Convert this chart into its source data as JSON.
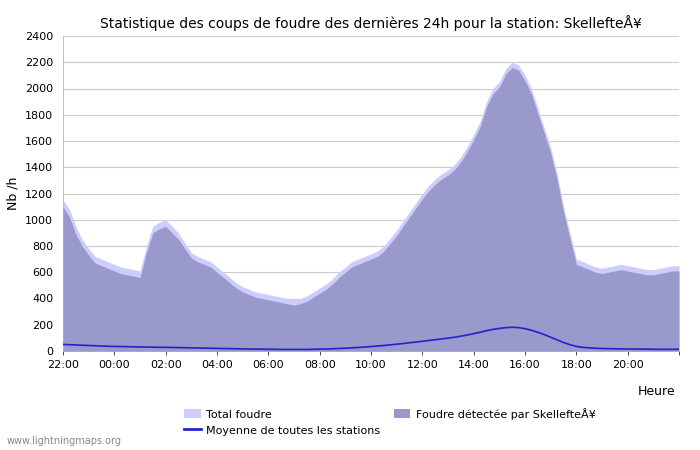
{
  "title": "Statistique des coups de foudre des dernières 24h pour la station: SkellefteÅ¥",
  "ylabel": "Nb /h",
  "xlabel_right": "Heure",
  "ylim": [
    0,
    2400
  ],
  "yticks": [
    0,
    200,
    400,
    600,
    800,
    1000,
    1200,
    1400,
    1600,
    1800,
    2000,
    2200,
    2400
  ],
  "xtick_positions": [
    0,
    2,
    4,
    6,
    8,
    10,
    12,
    14,
    16,
    18,
    20,
    22,
    24
  ],
  "xtick_labels": [
    "22:00",
    "00:00",
    "02:00",
    "04:00",
    "06:00",
    "08:00",
    "10:00",
    "12:00",
    "14:00",
    "16:00",
    "18:00",
    "20:00",
    ""
  ],
  "bg_color": "#ffffff",
  "grid_color": "#cccccc",
  "fill_total_color": "#ccccff",
  "fill_station_color": "#9999cc",
  "line_avg_color": "#2222cc",
  "watermark": "www.lightningmaps.org",
  "legend_total": "Total foudre",
  "legend_avg": "Moyenne de toutes les stations",
  "legend_station": "Foudre détectée par SkellefteÅ¥",
  "x": [
    0.0,
    0.25,
    0.5,
    0.75,
    1.0,
    1.25,
    1.5,
    1.75,
    2.0,
    2.25,
    2.5,
    2.75,
    3.0,
    3.25,
    3.5,
    3.75,
    4.0,
    4.25,
    4.5,
    4.75,
    5.0,
    5.25,
    5.5,
    5.75,
    6.0,
    6.25,
    6.5,
    6.75,
    7.0,
    7.25,
    7.5,
    7.75,
    8.0,
    8.25,
    8.5,
    8.75,
    9.0,
    9.25,
    9.5,
    9.75,
    10.0,
    10.25,
    10.5,
    10.75,
    11.0,
    11.25,
    11.5,
    11.75,
    12.0,
    12.25,
    12.5,
    12.75,
    13.0,
    13.25,
    13.5,
    13.75,
    14.0,
    14.25,
    14.5,
    14.75,
    15.0,
    15.25,
    15.5,
    15.75,
    16.0,
    16.25,
    16.5,
    16.75,
    17.0,
    17.25,
    17.5,
    17.75,
    18.0,
    18.25,
    18.5,
    18.75,
    19.0,
    19.25,
    19.5,
    19.75,
    20.0,
    20.25,
    20.5,
    20.75,
    21.0,
    21.25,
    21.5,
    21.75,
    22.0,
    22.25,
    22.5,
    22.75,
    23.0,
    23.25,
    23.5,
    23.75,
    24.0
  ],
  "total_foudre": [
    1150,
    1080,
    950,
    850,
    780,
    720,
    700,
    680,
    660,
    640,
    630,
    620,
    610,
    800,
    950,
    980,
    1000,
    950,
    900,
    820,
    750,
    720,
    700,
    680,
    640,
    600,
    560,
    520,
    490,
    470,
    450,
    440,
    430,
    420,
    410,
    400,
    390,
    400,
    420,
    450,
    480,
    510,
    550,
    600,
    640,
    680,
    700,
    720,
    740,
    760,
    800,
    860,
    920,
    990,
    1060,
    1130,
    1200,
    1260,
    1310,
    1350,
    1380,
    1420,
    1480,
    1560,
    1650,
    1750,
    1900,
    2000,
    2050,
    2150,
    2200,
    2180,
    2100,
    2000,
    1850,
    1700,
    1550,
    1350,
    1100,
    900,
    700,
    680,
    660,
    640,
    630,
    640,
    650,
    660,
    650,
    640,
    630,
    620,
    620,
    630,
    640,
    650,
    650
  ],
  "station_foudre": [
    1100,
    1020,
    890,
    800,
    730,
    670,
    650,
    630,
    610,
    590,
    580,
    570,
    560,
    750,
    900,
    930,
    950,
    900,
    850,
    780,
    710,
    680,
    660,
    640,
    600,
    560,
    520,
    480,
    450,
    430,
    410,
    400,
    390,
    380,
    370,
    360,
    350,
    360,
    380,
    410,
    440,
    470,
    510,
    560,
    600,
    640,
    660,
    680,
    700,
    720,
    760,
    820,
    880,
    950,
    1020,
    1090,
    1160,
    1220,
    1270,
    1310,
    1340,
    1380,
    1440,
    1520,
    1610,
    1710,
    1860,
    1960,
    2010,
    2110,
    2160,
    2140,
    2060,
    1960,
    1810,
    1660,
    1510,
    1310,
    1060,
    860,
    660,
    640,
    620,
    600,
    590,
    600,
    610,
    620,
    610,
    600,
    590,
    580,
    580,
    590,
    600,
    610,
    610
  ],
  "avg_foudre": [
    50,
    48,
    46,
    44,
    42,
    40,
    38,
    36,
    35,
    34,
    33,
    32,
    31,
    30,
    29,
    28,
    28,
    27,
    26,
    25,
    24,
    23,
    22,
    21,
    20,
    19,
    18,
    17,
    16,
    15,
    14,
    14,
    13,
    13,
    12,
    12,
    12,
    12,
    12,
    13,
    14,
    15,
    17,
    19,
    21,
    24,
    27,
    30,
    34,
    38,
    42,
    47,
    52,
    57,
    63,
    68,
    74,
    80,
    86,
    92,
    98,
    105,
    113,
    122,
    132,
    143,
    155,
    165,
    172,
    178,
    181,
    178,
    170,
    158,
    143,
    125,
    105,
    85,
    65,
    48,
    35,
    28,
    24,
    21,
    19,
    18,
    17,
    16,
    15,
    15,
    14,
    14,
    13,
    13,
    13,
    13,
    13
  ]
}
